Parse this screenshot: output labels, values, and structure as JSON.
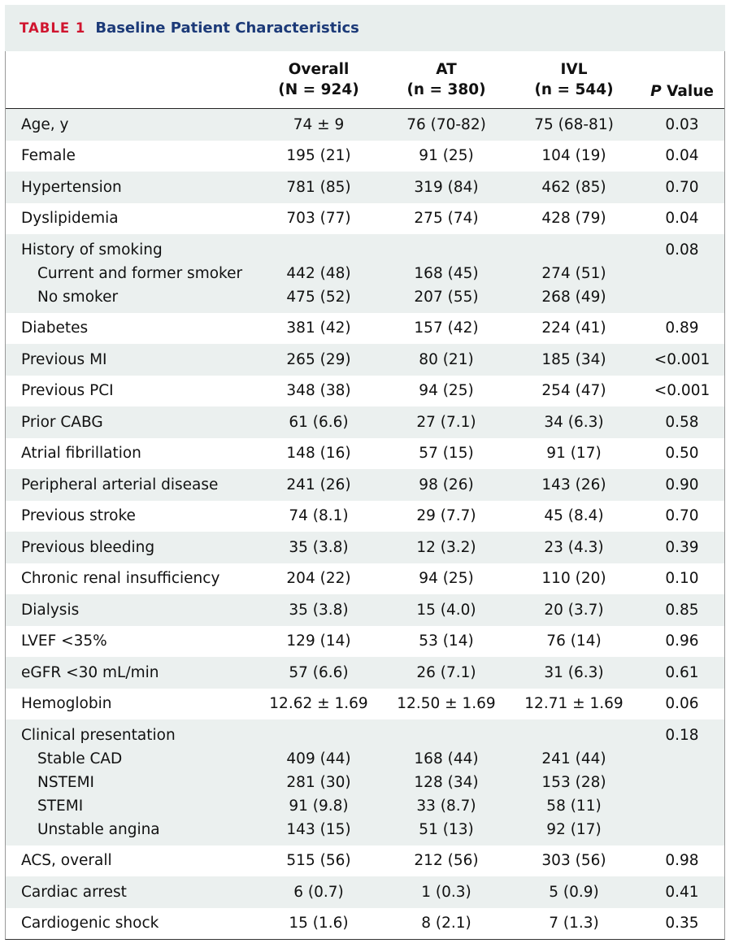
{
  "table_label": "TABLE 1",
  "title": "Baseline Patient Characteristics",
  "header": {
    "columns": [
      [
        "Overall",
        "(N = 924)"
      ],
      [
        "AT",
        "(n = 380)"
      ],
      [
        "IVL",
        "(n = 544)"
      ]
    ],
    "p_value": [
      "P",
      "Value"
    ]
  },
  "rows": [
    {
      "label": "Age, y",
      "cells": [
        "74 ± 9",
        "76 (70-82)",
        "75 (68-81)"
      ],
      "p": "0.03"
    },
    {
      "label": "Female",
      "cells": [
        "195 (21)",
        "91 (25)",
        "104 (19)"
      ],
      "p": "0.04"
    },
    {
      "label": "Hypertension",
      "cells": [
        "781 (85)",
        "319 (84)",
        "462 (85)"
      ],
      "p": "0.70"
    },
    {
      "label": "Dyslipidemia",
      "cells": [
        "703 (77)",
        "275 (74)",
        "428 (79)"
      ],
      "p": "0.04"
    },
    {
      "label": "History of smoking",
      "p": "0.08",
      "sub": [
        {
          "label": "Current and former smoker",
          "cells": [
            "442 (48)",
            "168 (45)",
            "274 (51)"
          ]
        },
        {
          "label": "No smoker",
          "cells": [
            "475 (52)",
            "207 (55)",
            "268 (49)"
          ]
        }
      ]
    },
    {
      "label": "Diabetes",
      "cells": [
        "381 (42)",
        "157 (42)",
        "224 (41)"
      ],
      "p": "0.89"
    },
    {
      "label": "Previous MI",
      "cells": [
        "265 (29)",
        "80 (21)",
        "185 (34)"
      ],
      "p": "<0.001"
    },
    {
      "label": "Previous PCI",
      "cells": [
        "348 (38)",
        "94 (25)",
        "254 (47)"
      ],
      "p": "<0.001"
    },
    {
      "label": "Prior CABG",
      "cells": [
        "61 (6.6)",
        "27 (7.1)",
        "34 (6.3)"
      ],
      "p": "0.58"
    },
    {
      "label": "Atrial fibrillation",
      "cells": [
        "148 (16)",
        "57 (15)",
        "91 (17)"
      ],
      "p": "0.50"
    },
    {
      "label": "Peripheral arterial disease",
      "cells": [
        "241 (26)",
        "98 (26)",
        "143 (26)"
      ],
      "p": "0.90"
    },
    {
      "label": "Previous stroke",
      "cells": [
        "74 (8.1)",
        "29 (7.7)",
        "45 (8.4)"
      ],
      "p": "0.70"
    },
    {
      "label": "Previous bleeding",
      "cells": [
        "35 (3.8)",
        "12 (3.2)",
        "23 (4.3)"
      ],
      "p": "0.39"
    },
    {
      "label": "Chronic renal insufficiency",
      "cells": [
        "204 (22)",
        "94 (25)",
        "110 (20)"
      ],
      "p": "0.10"
    },
    {
      "label": "Dialysis",
      "cells": [
        "35 (3.8)",
        "15 (4.0)",
        "20 (3.7)"
      ],
      "p": "0.85"
    },
    {
      "label": "LVEF <35%",
      "cells": [
        "129 (14)",
        "53 (14)",
        "76 (14)"
      ],
      "p": "0.96"
    },
    {
      "label": "eGFR <30 mL/min",
      "cells": [
        "57 (6.6)",
        "26 (7.1)",
        "31 (6.3)"
      ],
      "p": "0.61"
    },
    {
      "label": "Hemoglobin",
      "cells": [
        "12.62 ± 1.69",
        "12.50 ± 1.69",
        "12.71 ± 1.69"
      ],
      "p": "0.06"
    },
    {
      "label": "Clinical presentation",
      "p": "0.18",
      "sub": [
        {
          "label": "Stable CAD",
          "cells": [
            "409 (44)",
            "168 (44)",
            "241 (44)"
          ]
        },
        {
          "label": "NSTEMI",
          "cells": [
            "281 (30)",
            "128 (34)",
            "153 (28)"
          ]
        },
        {
          "label": "STEMI",
          "cells": [
            "91 (9.8)",
            "33 (8.7)",
            "58 (11)"
          ]
        },
        {
          "label": "Unstable angina",
          "cells": [
            "143 (15)",
            "51 (13)",
            "92 (17)"
          ]
        }
      ]
    },
    {
      "label": "ACS, overall",
      "cells": [
        "515 (56)",
        "212 (56)",
        "303 (56)"
      ],
      "p": "0.98"
    },
    {
      "label": "Cardiac arrest",
      "cells": [
        "6 (0.7)",
        "1 (0.3)",
        "5 (0.9)"
      ],
      "p": "0.41"
    },
    {
      "label": "Cardiogenic shock",
      "cells": [
        "15 (1.6)",
        "8 (2.1)",
        "7 (1.3)"
      ],
      "p": "0.35"
    }
  ]
}
